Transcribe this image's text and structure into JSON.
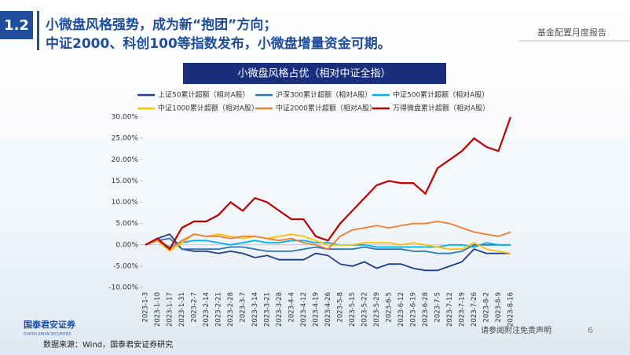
{
  "header": {
    "section": "1.2",
    "title_lines": [
      "小微盘风格强势，成为新“抱团”方向；",
      "中证2000、科创100等指数发布，小微盘增量资金可期。"
    ],
    "report_name": "基金配置月度报告"
  },
  "footer": {
    "logo": "国泰君安证券",
    "logo_en": "GUOTAI JUNAN SECURITIES",
    "disclaimer": "请参阅附注免责声明",
    "page": "6",
    "source": "数据来源：Wind，国泰君安证券研究"
  },
  "chart_data": {
    "type": "line",
    "title": "小微盘风格占优（相对中证全指）",
    "categories": [
      "2023-1-3",
      "2023-1-10",
      "2023-1-17",
      "2023-1-31",
      "2023-2-7",
      "2023-2-14",
      "2023-2-21",
      "2023-2-28",
      "2023-3-7",
      "2023-3-14",
      "2023-3-21",
      "2023-3-28",
      "2023-4-4",
      "2023-4-12",
      "2023-4-19",
      "2023-4-26",
      "2023-5-8",
      "2023-5-15",
      "2023-5-22",
      "2023-5-29",
      "2023-6-5",
      "2023-6-12",
      "2023-6-19",
      "2023-6-28",
      "2023-7-5",
      "2023-7-12",
      "2023-7-19",
      "2023-7-26",
      "2023-8-2",
      "2023-8-9",
      "2023-8-16"
    ],
    "series": [
      {
        "name": "上证50累计超额（相对A股）",
        "color": "#1f3c88",
        "values": [
          0,
          1.5,
          2.5,
          -1,
          -1.5,
          -1.5,
          -2,
          -1.5,
          -2,
          -3,
          -2.5,
          -3.5,
          -3.5,
          -3.5,
          -2,
          -2.5,
          -4.5,
          -5,
          -4,
          -5.5,
          -4.5,
          -4.5,
          -5.5,
          -6,
          -6,
          -5,
          -4,
          -1,
          -2,
          -2,
          -2
        ]
      },
      {
        "name": "沪深300累计超额（相对A股）",
        "color": "#2e75b6",
        "values": [
          0,
          1,
          1.5,
          -1,
          -1,
          -1,
          -1,
          -0.5,
          -0.5,
          -1,
          -1.5,
          -1.5,
          -1.5,
          -1,
          -0.5,
          -1,
          -1,
          -1,
          -0.5,
          -1,
          -1,
          -1,
          -1.5,
          -1.5,
          -2,
          -2,
          -1.5,
          0,
          0,
          0,
          0
        ]
      },
      {
        "name": "中证500累计超额（相对A股）",
        "color": "#00b0f0",
        "values": [
          0,
          1,
          -0.5,
          0.5,
          1,
          1,
          0.5,
          0,
          0.5,
          1,
          0.5,
          0.5,
          1,
          1,
          0.5,
          0.5,
          0,
          0,
          0,
          -0.5,
          -0.5,
          -0.5,
          -0.5,
          -0.5,
          -0.5,
          0,
          0,
          -0.5,
          0.5,
          0,
          0
        ]
      },
      {
        "name": "中证1000累计超额（相对A股）",
        "color": "#ffc000",
        "values": [
          0,
          1,
          -1.5,
          0.5,
          2.5,
          2,
          2.5,
          2,
          1.5,
          2,
          1.5,
          2,
          2.5,
          2,
          1,
          0,
          0,
          0,
          0.5,
          0.5,
          0.5,
          0,
          0.5,
          0,
          -0.5,
          -1,
          -1,
          0.5,
          -1,
          -1.5,
          -2
        ]
      },
      {
        "name": "中证2000累计超额（相对A股）",
        "color": "#ed7d31",
        "values": [
          0,
          1,
          -1,
          1,
          2.5,
          2,
          2,
          1.5,
          2,
          2,
          1.5,
          1,
          1.5,
          0.5,
          0,
          -1,
          2,
          3.5,
          4,
          4.5,
          4,
          4.5,
          5,
          5,
          5.5,
          5,
          4,
          3,
          2.5,
          2,
          3
        ]
      },
      {
        "name": "万得微盘累计超额（相对A股）",
        "color": "#c00000",
        "values": [
          0,
          1.5,
          -1,
          4,
          5.5,
          5.5,
          7,
          10,
          8,
          11,
          10,
          8,
          6,
          6,
          2,
          1,
          5,
          8,
          11,
          14,
          15,
          14.5,
          14.5,
          12,
          18,
          20,
          22,
          25,
          23,
          22,
          30
        ]
      }
    ],
    "ylim": [
      -10,
      30
    ],
    "yticks": [
      {
        "value": 30,
        "label": "30.00%"
      },
      {
        "value": 25,
        "label": "25.00%"
      },
      {
        "value": 20,
        "label": "20.00%"
      },
      {
        "value": 15,
        "label": "15.00%"
      },
      {
        "value": 10,
        "label": "10.00%"
      },
      {
        "value": 5,
        "label": "5.00%"
      },
      {
        "value": 0,
        "label": "0.00%"
      },
      {
        "value": -5,
        "label": "-5.00%"
      },
      {
        "value": -10,
        "label": "-10.00%"
      }
    ]
  }
}
